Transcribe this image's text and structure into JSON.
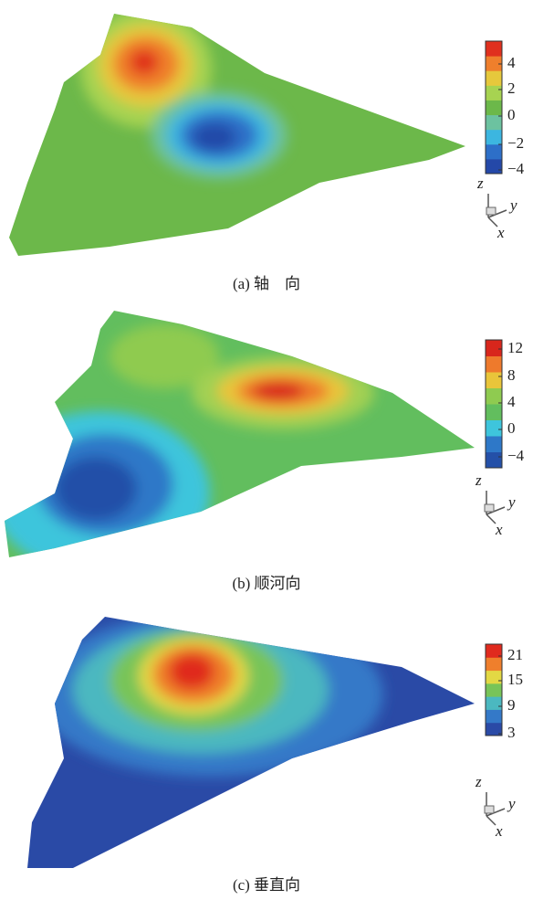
{
  "panels": [
    {
      "caption": "(a) 轴　向",
      "colorbar": {
        "ticks": [
          "4",
          "2",
          "0",
          "−2",
          "−4"
        ]
      },
      "axes": {
        "z": "z",
        "y": "y",
        "x": "x"
      }
    },
    {
      "caption": "(b) 顺河向",
      "colorbar": {
        "ticks": [
          "12",
          "8",
          "4",
          "0",
          "−4"
        ]
      },
      "axes": {
        "z": "z",
        "y": "y",
        "x": "x"
      }
    },
    {
      "caption": "(c) 垂直向",
      "colorbar": {
        "ticks": [
          "21",
          "15",
          "9",
          "3"
        ]
      },
      "axes": {
        "z": "z",
        "y": "y",
        "x": "x"
      }
    }
  ]
}
